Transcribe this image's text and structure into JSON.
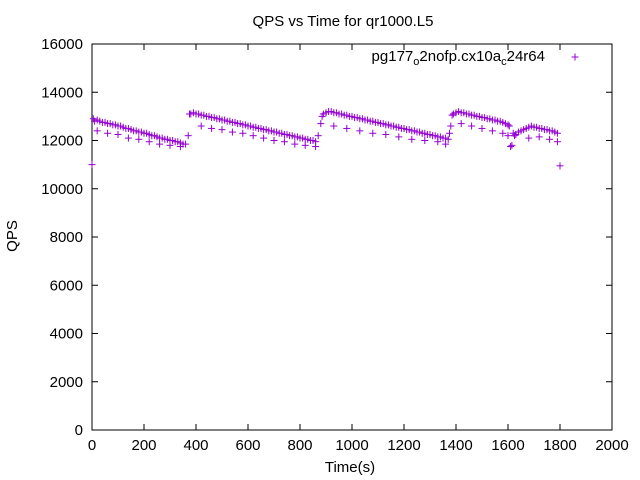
{
  "chart_data": {
    "type": "scatter",
    "title": "QPS vs Time for qr1000.L5",
    "xlabel": "Time(s)",
    "ylabel": "QPS",
    "xlim": [
      0,
      2000
    ],
    "ylim": [
      0,
      16000
    ],
    "x_ticks": [
      "0",
      "200",
      "400",
      "600",
      "800",
      "1000",
      "1200",
      "1400",
      "1600",
      "1800",
      "2000"
    ],
    "y_ticks": [
      "0",
      "2000",
      "4000",
      "6000",
      "8000",
      "10000",
      "12000",
      "14000",
      "16000"
    ],
    "grid": false,
    "legend_position": "top-right",
    "marker": "+",
    "series": [
      {
        "name_parts": [
          "pg177",
          "o",
          "2nofp.cx10a",
          "c",
          "24r64"
        ],
        "color": "#9400d3",
        "points": [
          [
            0,
            11000
          ],
          [
            5,
            12900
          ],
          [
            10,
            12800
          ],
          [
            20,
            12850
          ],
          [
            30,
            12800
          ],
          [
            40,
            12750
          ],
          [
            50,
            12750
          ],
          [
            60,
            12700
          ],
          [
            70,
            12700
          ],
          [
            80,
            12650
          ],
          [
            90,
            12650
          ],
          [
            100,
            12600
          ],
          [
            110,
            12600
          ],
          [
            120,
            12550
          ],
          [
            130,
            12500
          ],
          [
            140,
            12500
          ],
          [
            150,
            12450
          ],
          [
            160,
            12400
          ],
          [
            170,
            12400
          ],
          [
            180,
            12350
          ],
          [
            190,
            12350
          ],
          [
            200,
            12300
          ],
          [
            210,
            12300
          ],
          [
            220,
            12250
          ],
          [
            230,
            12200
          ],
          [
            240,
            12200
          ],
          [
            250,
            12150
          ],
          [
            260,
            12100
          ],
          [
            270,
            12100
          ],
          [
            280,
            12050
          ],
          [
            290,
            12050
          ],
          [
            300,
            12000
          ],
          [
            310,
            12000
          ],
          [
            320,
            11950
          ],
          [
            330,
            11950
          ],
          [
            340,
            11900
          ],
          [
            350,
            11850
          ],
          [
            360,
            11850
          ],
          [
            20,
            12400
          ],
          [
            60,
            12300
          ],
          [
            100,
            12250
          ],
          [
            140,
            12100
          ],
          [
            180,
            12050
          ],
          [
            220,
            11950
          ],
          [
            260,
            11850
          ],
          [
            300,
            11800
          ],
          [
            340,
            11750
          ],
          [
            370,
            12200
          ],
          [
            375,
            13100
          ],
          [
            380,
            13100
          ],
          [
            390,
            13150
          ],
          [
            400,
            13100
          ],
          [
            410,
            13100
          ],
          [
            420,
            13050
          ],
          [
            430,
            13050
          ],
          [
            440,
            13000
          ],
          [
            450,
            13000
          ],
          [
            460,
            12950
          ],
          [
            470,
            12950
          ],
          [
            480,
            12900
          ],
          [
            490,
            12900
          ],
          [
            500,
            12850
          ],
          [
            510,
            12850
          ],
          [
            520,
            12800
          ],
          [
            530,
            12800
          ],
          [
            540,
            12750
          ],
          [
            550,
            12750
          ],
          [
            560,
            12700
          ],
          [
            570,
            12700
          ],
          [
            580,
            12650
          ],
          [
            590,
            12650
          ],
          [
            600,
            12600
          ],
          [
            610,
            12600
          ],
          [
            620,
            12550
          ],
          [
            630,
            12550
          ],
          [
            640,
            12500
          ],
          [
            650,
            12500
          ],
          [
            660,
            12450
          ],
          [
            670,
            12450
          ],
          [
            680,
            12400
          ],
          [
            690,
            12400
          ],
          [
            700,
            12350
          ],
          [
            710,
            12350
          ],
          [
            720,
            12300
          ],
          [
            730,
            12300
          ],
          [
            740,
            12250
          ],
          [
            750,
            12250
          ],
          [
            760,
            12200
          ],
          [
            770,
            12200
          ],
          [
            780,
            12150
          ],
          [
            790,
            12150
          ],
          [
            800,
            12100
          ],
          [
            810,
            12100
          ],
          [
            820,
            12050
          ],
          [
            830,
            12050
          ],
          [
            840,
            12000
          ],
          [
            850,
            12000
          ],
          [
            860,
            11950
          ],
          [
            870,
            12200
          ],
          [
            420,
            12600
          ],
          [
            460,
            12500
          ],
          [
            500,
            12450
          ],
          [
            540,
            12350
          ],
          [
            580,
            12300
          ],
          [
            620,
            12200
          ],
          [
            660,
            12100
          ],
          [
            700,
            12000
          ],
          [
            740,
            11950
          ],
          [
            780,
            11850
          ],
          [
            820,
            11800
          ],
          [
            860,
            11750
          ],
          [
            880,
            12700
          ],
          [
            885,
            13000
          ],
          [
            890,
            13100
          ],
          [
            900,
            13150
          ],
          [
            910,
            13200
          ],
          [
            920,
            13200
          ],
          [
            930,
            13150
          ],
          [
            940,
            13150
          ],
          [
            950,
            13100
          ],
          [
            960,
            13100
          ],
          [
            970,
            13050
          ],
          [
            980,
            13050
          ],
          [
            990,
            13000
          ],
          [
            1000,
            13000
          ],
          [
            1010,
            12950
          ],
          [
            1020,
            12950
          ],
          [
            1030,
            12900
          ],
          [
            1040,
            12900
          ],
          [
            1050,
            12850
          ],
          [
            1060,
            12850
          ],
          [
            1070,
            12800
          ],
          [
            1080,
            12800
          ],
          [
            1090,
            12750
          ],
          [
            1100,
            12750
          ],
          [
            1110,
            12700
          ],
          [
            1120,
            12700
          ],
          [
            1130,
            12650
          ],
          [
            1140,
            12650
          ],
          [
            1150,
            12600
          ],
          [
            1160,
            12600
          ],
          [
            1170,
            12550
          ],
          [
            1180,
            12550
          ],
          [
            1190,
            12500
          ],
          [
            1200,
            12500
          ],
          [
            1210,
            12450
          ],
          [
            1220,
            12450
          ],
          [
            1230,
            12400
          ],
          [
            1240,
            12400
          ],
          [
            1250,
            12350
          ],
          [
            1260,
            12350
          ],
          [
            1270,
            12300
          ],
          [
            1280,
            12300
          ],
          [
            1290,
            12250
          ],
          [
            1300,
            12250
          ],
          [
            1310,
            12200
          ],
          [
            1320,
            12200
          ],
          [
            1330,
            12150
          ],
          [
            1340,
            12150
          ],
          [
            1350,
            12100
          ],
          [
            1360,
            12100
          ],
          [
            1370,
            12050
          ],
          [
            1375,
            12300
          ],
          [
            930,
            12600
          ],
          [
            980,
            12500
          ],
          [
            1030,
            12400
          ],
          [
            1080,
            12300
          ],
          [
            1130,
            12250
          ],
          [
            1180,
            12150
          ],
          [
            1230,
            12050
          ],
          [
            1280,
            12000
          ],
          [
            1330,
            11950
          ],
          [
            1360,
            11850
          ],
          [
            1380,
            12600
          ],
          [
            1385,
            13050
          ],
          [
            1390,
            13100
          ],
          [
            1400,
            13150
          ],
          [
            1410,
            13200
          ],
          [
            1420,
            13150
          ],
          [
            1430,
            13150
          ],
          [
            1440,
            13100
          ],
          [
            1450,
            13100
          ],
          [
            1460,
            13050
          ],
          [
            1470,
            13050
          ],
          [
            1480,
            13000
          ],
          [
            1490,
            13000
          ],
          [
            1500,
            12950
          ],
          [
            1510,
            12950
          ],
          [
            1520,
            12900
          ],
          [
            1530,
            12900
          ],
          [
            1540,
            12850
          ],
          [
            1550,
            12850
          ],
          [
            1560,
            12800
          ],
          [
            1570,
            12800
          ],
          [
            1580,
            12750
          ],
          [
            1590,
            12700
          ],
          [
            1600,
            12650
          ],
          [
            1605,
            12600
          ],
          [
            1420,
            12700
          ],
          [
            1460,
            12600
          ],
          [
            1500,
            12500
          ],
          [
            1540,
            12400
          ],
          [
            1580,
            12300
          ],
          [
            1600,
            12200
          ],
          [
            1610,
            11750
          ],
          [
            1615,
            11800
          ],
          [
            1620,
            12300
          ],
          [
            1625,
            12200
          ],
          [
            1630,
            12250
          ],
          [
            1640,
            12350
          ],
          [
            1650,
            12400
          ],
          [
            1660,
            12450
          ],
          [
            1670,
            12500
          ],
          [
            1680,
            12550
          ],
          [
            1690,
            12600
          ],
          [
            1700,
            12550
          ],
          [
            1710,
            12550
          ],
          [
            1720,
            12500
          ],
          [
            1730,
            12500
          ],
          [
            1740,
            12450
          ],
          [
            1750,
            12450
          ],
          [
            1760,
            12400
          ],
          [
            1770,
            12400
          ],
          [
            1780,
            12350
          ],
          [
            1790,
            12300
          ],
          [
            1680,
            12100
          ],
          [
            1720,
            12150
          ],
          [
            1760,
            12050
          ],
          [
            1790,
            11950
          ],
          [
            1800,
            10950
          ]
        ]
      }
    ]
  }
}
